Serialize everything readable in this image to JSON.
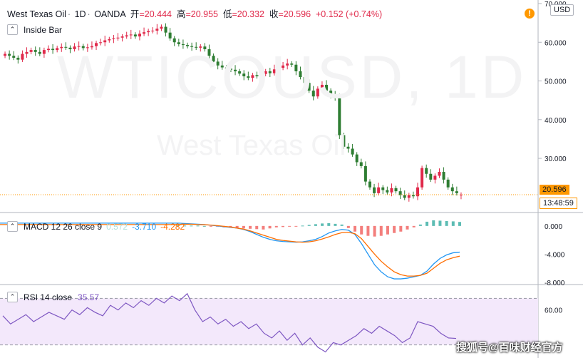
{
  "header": {
    "symbol": "West Texas Oil",
    "interval": "1D",
    "source": "OANDA",
    "open_label": "开",
    "open": "=20.444",
    "high_label": "高",
    "high": "=20.955",
    "low_label": "低",
    "low": "=20.332",
    "close_label": "收",
    "close": "=20.596",
    "change": "+0.152 (+0.74%)",
    "currency": "USD",
    "alert_icon": "!"
  },
  "watermark": {
    "ticker": "WTICOUSD, 1D",
    "name": "West Texas Oil"
  },
  "indicators": {
    "main": "Inside Bar",
    "macd": {
      "label": "MACD 12 26 close 9",
      "hist": "0.572",
      "macd": "-3.710",
      "signal": "-4.282"
    },
    "rsi": {
      "label": "RSI 14 close",
      "value": "35.57"
    }
  },
  "price_tag": "20.596",
  "countdown": "13:48:59",
  "credit": "搜狐号@百味财经官方",
  "colors": {
    "up": "#26a69a",
    "down": "#ef5350",
    "bull": "#e0294a",
    "bear": "#2e7d32",
    "macd_line": "#2196f3",
    "signal_line": "#ff6d00",
    "rsi_line": "#7e57c2",
    "rsi_band": "#f3e8fb",
    "last_line": "#ff9800"
  },
  "chart_data": [
    {
      "type": "candlestick",
      "title": "West Texas Oil · 1D · OANDA",
      "ylim": [
        16,
        70
      ],
      "y_ticks": [
        "70.000",
        "60.000",
        "50.000",
        "40.000",
        "30.000"
      ],
      "last_price": 20.596,
      "closes": [
        57,
        56.5,
        56,
        55.5,
        57,
        57.5,
        58,
        57.5,
        57,
        58,
        58.3,
        58,
        58.5,
        58.8,
        58.6,
        58.2,
        58.9,
        59,
        58.5,
        58.7,
        59,
        59.8,
        60,
        60.5,
        60.8,
        61,
        61.2,
        61.5,
        61.8,
        62,
        61.5,
        62.2,
        62.6,
        62.9,
        63,
        63.5,
        64,
        62.5,
        61,
        60,
        59.5,
        59.3,
        59,
        58.8,
        58.6,
        58.9,
        58.2,
        56.5,
        55,
        54,
        53.5,
        53.2,
        52.9,
        52.5,
        51.9,
        51.2,
        50.8,
        51.5,
        51.2,
        51.8,
        52.5,
        52,
        53,
        53.4,
        54,
        54.5,
        54.2,
        52.5,
        51,
        49.5,
        47.5,
        46,
        48,
        49,
        47.5,
        46.5,
        45.5,
        36,
        33,
        32.5,
        31,
        29,
        28,
        24,
        22.5,
        21,
        22.5,
        21.8,
        21.2,
        22.3,
        21.5,
        20.5,
        19.8,
        20.5,
        20.2,
        22.5,
        27.5,
        26,
        24.5,
        25.5,
        26.5,
        24.5,
        22.5,
        21.5,
        21,
        20.6
      ],
      "opens": [
        56.5,
        57,
        56.5,
        56,
        55.5,
        57,
        57.5,
        58,
        57.5,
        57,
        58,
        58.3,
        58,
        58.5,
        58.8,
        58.6,
        58.2,
        58.9,
        59,
        58.5,
        58.7,
        59,
        59.8,
        60,
        60.5,
        60.8,
        61,
        61.2,
        61.5,
        61.8,
        62,
        61.5,
        62.2,
        62.6,
        62.9,
        63,
        63.5,
        64,
        62.5,
        61,
        60,
        59.5,
        59.3,
        59,
        58.8,
        58.6,
        58.9,
        58.2,
        56.5,
        55,
        54,
        53.5,
        53.2,
        52.9,
        52.5,
        51.9,
        51.2,
        50.8,
        51.5,
        51.2,
        51.8,
        52.5,
        52,
        53,
        53.4,
        54,
        54.5,
        54.2,
        52.5,
        51,
        49.5,
        47.5,
        46,
        48,
        49,
        47.5,
        46.5,
        45.5,
        36,
        33,
        32.5,
        31,
        29,
        28,
        24,
        22.5,
        21,
        22.5,
        21.8,
        21.2,
        22.3,
        21.5,
        20.5,
        19.8,
        20.5,
        20.2,
        22.5,
        27.5,
        26,
        24.5,
        25.5,
        26.5,
        24.5,
        22.5,
        21.5,
        20.44
      ],
      "y_tag": "20.596"
    },
    {
      "type": "line",
      "title": "MACD 12 26 close 9",
      "ylim": [
        -8,
        1.5
      ],
      "y_ticks": [
        "0.000",
        "-4.000",
        "-8.000"
      ],
      "series": [
        {
          "name": "MACD",
          "values": [
            0.4,
            0.35,
            0.3,
            0.25,
            0.2,
            0.1,
            0,
            -0.1,
            -0.2,
            -0.3,
            -0.5,
            -0.8,
            -1.2,
            -1.6,
            -1.9,
            -2.1,
            -2.2,
            -2.25,
            -2.3,
            -2.25,
            -2.1,
            -1.9,
            -1.5,
            -1.0,
            -0.7,
            -0.5,
            -0.6,
            -1.2,
            -2.5,
            -4.0,
            -5.5,
            -6.5,
            -7.2,
            -7.5,
            -7.5,
            -7.4,
            -7.2,
            -7.0,
            -6.4,
            -5.4,
            -4.6,
            -4.1,
            -3.8,
            -3.71
          ]
        },
        {
          "name": "Signal",
          "values": [
            0.2,
            0.25,
            0.25,
            0.2,
            0.18,
            0.12,
            0.05,
            -0.05,
            -0.15,
            -0.3,
            -0.45,
            -0.7,
            -1.0,
            -1.3,
            -1.6,
            -1.9,
            -2.05,
            -2.15,
            -2.25,
            -2.3,
            -2.25,
            -2.1,
            -1.85,
            -1.55,
            -1.2,
            -0.95,
            -0.9,
            -1.1,
            -1.8,
            -2.9,
            -4.0,
            -5.0,
            -5.8,
            -6.5,
            -6.9,
            -7.1,
            -7.1,
            -7.0,
            -6.7,
            -6.0,
            -5.3,
            -4.8,
            -4.5,
            -4.28
          ]
        }
      ],
      "histogram": [
        0.1,
        0.05,
        0.05,
        0.05,
        0,
        -0.05,
        -0.1,
        -0.2,
        -0.25,
        -0.3,
        -0.35,
        -0.4,
        -0.45,
        -0.5,
        -0.35,
        -0.2,
        -0.15,
        -0.1,
        -0.05,
        0.05,
        0.15,
        0.25,
        0.35,
        0.4,
        0.3,
        0.2,
        -0.3,
        -0.8,
        -1.2,
        -1.4,
        -1.5,
        -1.4,
        -1.2,
        -1.0,
        -0.8,
        -0.5,
        -0.2,
        0.2,
        0.6,
        0.8,
        0.75,
        0.7,
        0.65,
        0.57
      ]
    },
    {
      "type": "line",
      "title": "RSI 14 close",
      "ylim": [
        20,
        80
      ],
      "y_ticks": [
        "60.00"
      ],
      "band": [
        30,
        70
      ],
      "series": [
        {
          "name": "RSI",
          "values": [
            55,
            48,
            52,
            56,
            50,
            54,
            58,
            55,
            52,
            60,
            56,
            62,
            58,
            55,
            64,
            60,
            66,
            62,
            68,
            64,
            70,
            66,
            72,
            68,
            74,
            60,
            50,
            54,
            48,
            52,
            46,
            50,
            44,
            48,
            40,
            36,
            42,
            34,
            40,
            30,
            36,
            28,
            24,
            32,
            30,
            34,
            38,
            44,
            40,
            46,
            42,
            38,
            32,
            36,
            50,
            48,
            46,
            40,
            36,
            35.57
          ]
        }
      ]
    }
  ]
}
